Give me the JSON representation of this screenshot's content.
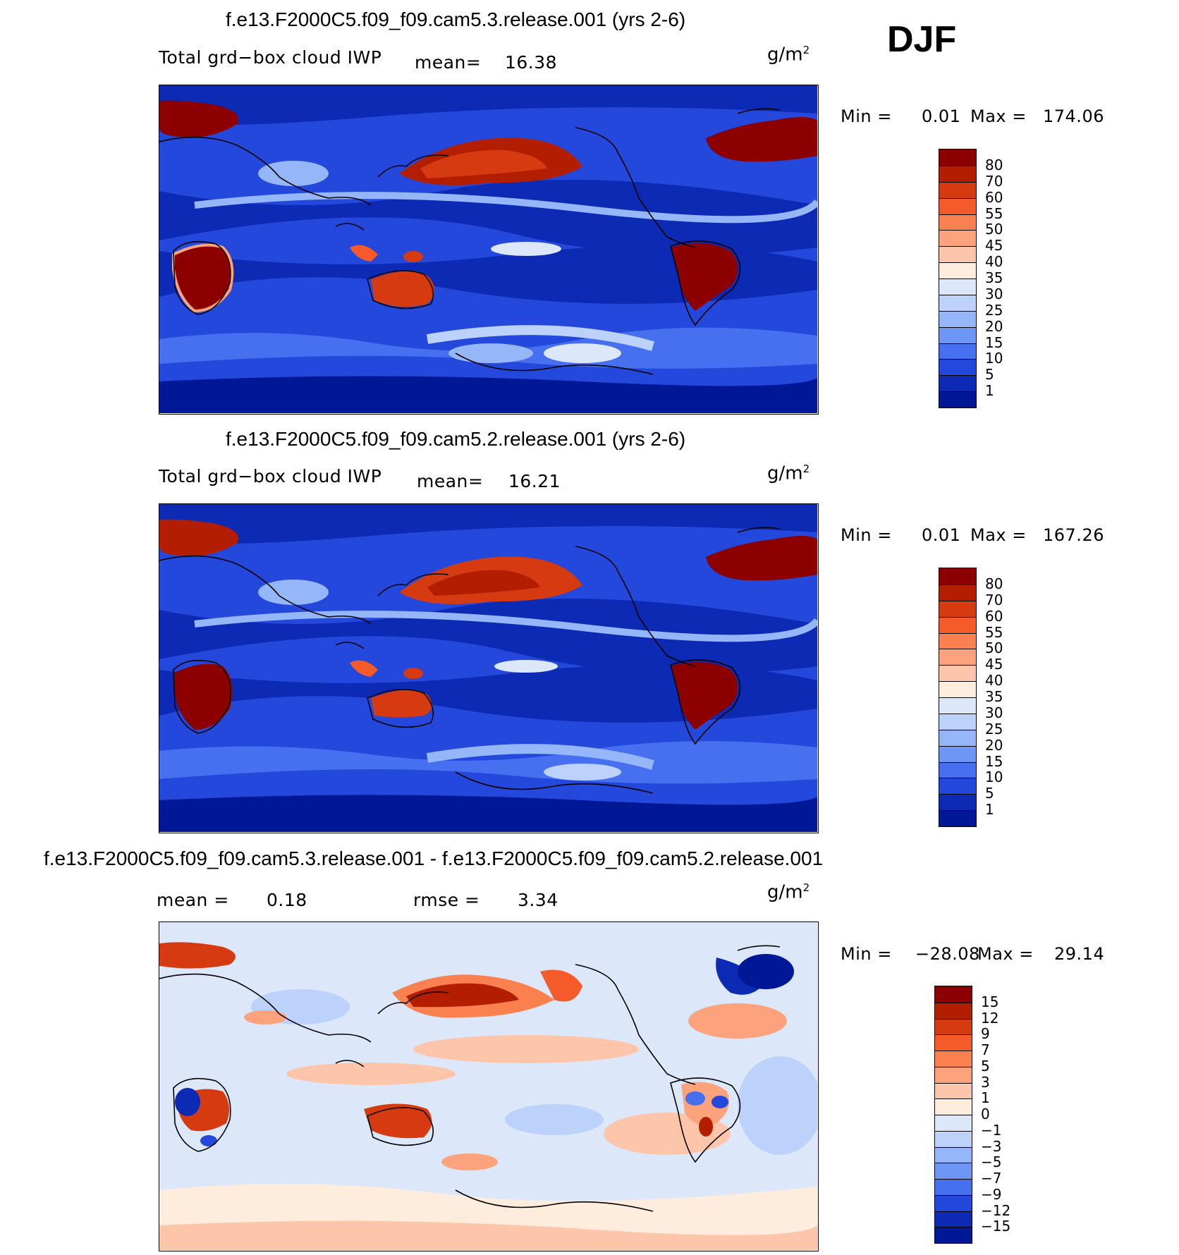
{
  "season": "DJF",
  "panels": [
    {
      "title": "f.e13.F2000C5.f09_f09.cam5.3.release.001 (yrs 2-6)",
      "variable": "Total grd−box cloud IWP",
      "stat_label": "mean=",
      "stat_value": "16.38",
      "units": "g/m",
      "units_exp": "2",
      "min_label": "Min =",
      "min_value": "0.01",
      "max_label": "Max =",
      "max_value": "174.06",
      "levels": [
        "80",
        "70",
        "60",
        "55",
        "50",
        "45",
        "40",
        "35",
        "30",
        "25",
        "20",
        "15",
        "10",
        "5",
        "1"
      ],
      "colors": [
        "#8c0000",
        "#b41e00",
        "#d63a10",
        "#f55a2a",
        "#fa8050",
        "#fca27c",
        "#fdc6aa",
        "#feeddc",
        "#dce8fa",
        "#bcd2fa",
        "#96b6fa",
        "#6e96f5",
        "#4670f0",
        "#2448dc",
        "#0c2ab4",
        "#001896"
      ]
    },
    {
      "title": "f.e13.F2000C5.f09_f09.cam5.2.release.001 (yrs 2-6)",
      "variable": "Total grd−box cloud IWP",
      "stat_label": "mean=",
      "stat_value": "16.21",
      "units": "g/m",
      "units_exp": "2",
      "min_label": "Min =",
      "min_value": "0.01",
      "max_label": "Max =",
      "max_value": "167.26",
      "levels": [
        "80",
        "70",
        "60",
        "55",
        "50",
        "45",
        "40",
        "35",
        "30",
        "25",
        "20",
        "15",
        "10",
        "5",
        "1"
      ],
      "colors": [
        "#8c0000",
        "#b41e00",
        "#d63a10",
        "#f55a2a",
        "#fa8050",
        "#fca27c",
        "#fdc6aa",
        "#feeddc",
        "#dce8fa",
        "#bcd2fa",
        "#96b6fa",
        "#6e96f5",
        "#4670f0",
        "#2448dc",
        "#0c2ab4",
        "#001896"
      ]
    },
    {
      "title": "f.e13.F2000C5.f09_f09.cam5.3.release.001 - f.e13.F2000C5.f09_f09.cam5.2.release.001",
      "variable": "",
      "stat_label": "mean =",
      "stat_value": "0.18",
      "rmse_label": "rmse =",
      "rmse_value": "3.34",
      "units": "g/m",
      "units_exp": "2",
      "min_label": "Min =",
      "min_value": "−28.08",
      "max_label": "Max =",
      "max_value": "29.14",
      "levels": [
        "15",
        "12",
        "9",
        "7",
        "5",
        "3",
        "1",
        "0",
        "−1",
        "−3",
        "−5",
        "−7",
        "−9",
        "−12",
        "−15"
      ],
      "colors": [
        "#8c0000",
        "#b41e00",
        "#d63a10",
        "#f55a2a",
        "#fa8050",
        "#fca27c",
        "#fdc6aa",
        "#feeddc",
        "#dce8fa",
        "#bcd2fa",
        "#96b6fa",
        "#6e96f5",
        "#4670f0",
        "#2448dc",
        "#0c2ab4",
        "#001896"
      ]
    }
  ]
}
